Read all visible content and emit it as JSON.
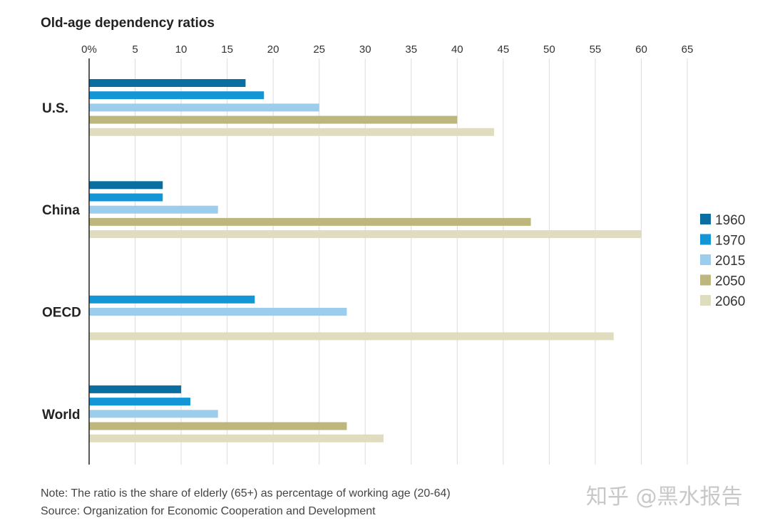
{
  "chart_data": {
    "type": "bar",
    "orientation": "horizontal",
    "title": "Old-age dependency ratios",
    "categories": [
      "U.S.",
      "China",
      "OECD",
      "World"
    ],
    "x_ticks": [
      "0%",
      "5",
      "10",
      "15",
      "20",
      "25",
      "30",
      "35",
      "40",
      "45",
      "50",
      "55",
      "60",
      "65"
    ],
    "xlim": [
      0,
      65
    ],
    "grid": "vertical",
    "legend_position": "right",
    "series": [
      {
        "name": "1960",
        "color": "#0a6fa0",
        "values": [
          17,
          8,
          null,
          10
        ]
      },
      {
        "name": "1970",
        "color": "#1396d6",
        "values": [
          19,
          8,
          18,
          11
        ]
      },
      {
        "name": "2015",
        "color": "#9dcdec",
        "values": [
          25,
          14,
          28,
          14
        ]
      },
      {
        "name": "2050",
        "color": "#bdb67d",
        "values": [
          40,
          48,
          null,
          28
        ]
      },
      {
        "name": "2060",
        "color": "#e0dcbf",
        "values": [
          44,
          60,
          57,
          32
        ]
      }
    ]
  },
  "notes": {
    "note": "Note: The ratio is the share of elderly (65+) as percentage of working age (20-64)",
    "source": "Source: Organization for Economic Cooperation and Development"
  },
  "watermark": "知乎 @黑水报告"
}
